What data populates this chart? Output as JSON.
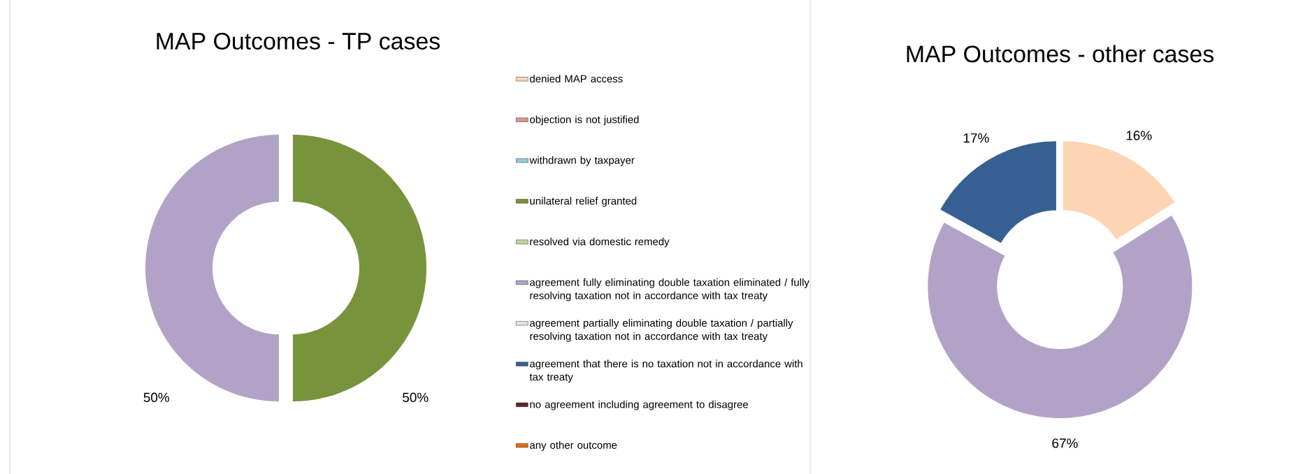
{
  "chart_data": [
    {
      "type": "donut",
      "title": "MAP Outcomes - TP cases",
      "categories": [
        "denied MAP access",
        "objection is not justified",
        "withdrawn by taxpayer",
        "unilateral relief granted",
        "resolved via domestic remedy",
        "agreement fully eliminating double taxation eliminated / fully resolving taxation not in accordance with tax treaty",
        "agreement partially eliminating double taxation / partially resolving taxation not in accordance with tax treaty",
        "agreement that there is no taxation not in accordance with tax treaty",
        "no agreement including agreement to disagree",
        "any other outcome"
      ],
      "values": [
        0,
        0,
        0,
        50,
        0,
        50,
        0,
        0,
        0,
        0
      ],
      "colors": [
        "#fcd5b5",
        "#d99694",
        "#93cddd",
        "#77933c",
        "#c3d69b",
        "#b3a2c7",
        "#e6e0ec",
        "#376092",
        "#632523",
        "#e46c0a"
      ],
      "value_labels": [
        null,
        null,
        null,
        "50%",
        null,
        "50%",
        null,
        null,
        null,
        null
      ],
      "legend": "right"
    },
    {
      "type": "donut",
      "title": "MAP Outcomes - other cases",
      "categories": [
        null,
        null,
        null,
        null,
        null,
        null,
        null,
        null,
        null,
        null
      ],
      "values": [
        16,
        0,
        0,
        0,
        0,
        67,
        0,
        17,
        0,
        0
      ],
      "colors": [
        "#fcd5b5",
        "#d99694",
        "#93cddd",
        "#77933c",
        "#c3d69b",
        "#b3a2c7",
        "#e6e0ec",
        "#376092",
        "#632523",
        "#e46c0a"
      ],
      "value_labels": [
        "16%",
        null,
        null,
        null,
        null,
        "67%",
        null,
        "17%",
        null,
        null
      ]
    }
  ]
}
